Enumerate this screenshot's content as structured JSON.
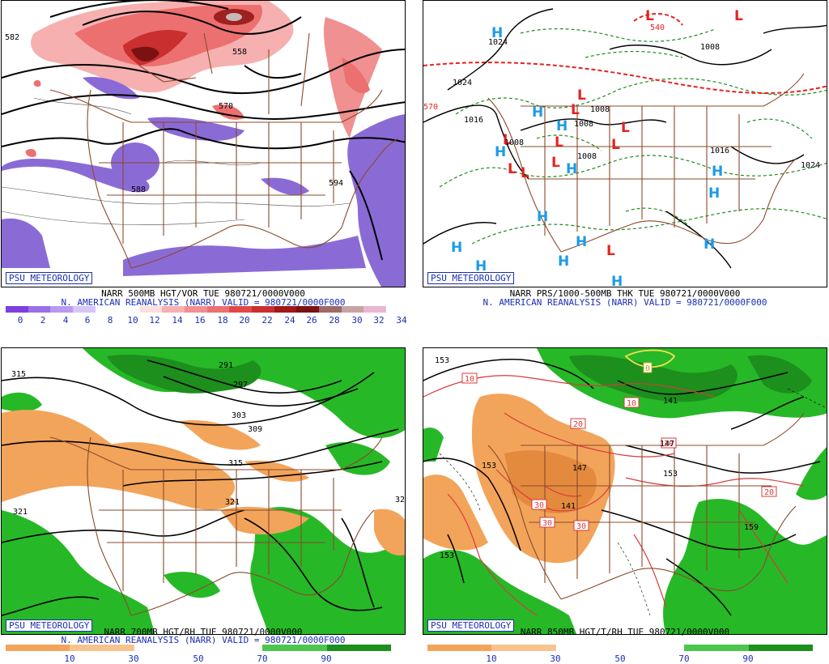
{
  "colors": {
    "blue_text": "#1a2fb5",
    "border_brown": "#8b4a2b",
    "vort_purple": "#8a6bd6",
    "vort_red": "#d83b3b",
    "moist_green": "#27b827",
    "dry_orange": "#f2a45a",
    "high_cyan": "#1c9be6",
    "low_red": "#e52222"
  },
  "panels": [
    {
      "id": "p1",
      "badge": "PSU METEOROLOGY",
      "caption_line1": "NARR 500MB HGT/VOR TUE 980721/0000V000",
      "caption_line2": "N. AMERICAN REANALYSIS (NARR) VALID = 980721/0000F000",
      "colorbar_ticks": [
        "0",
        "2",
        "4",
        "6",
        "8",
        "10",
        "12",
        "14",
        "16",
        "18",
        "20",
        "22",
        "24",
        "26",
        "28",
        "30",
        "32",
        "34"
      ],
      "contour_labels": [
        "582",
        "558",
        "570",
        "588",
        "594",
        "594",
        "588"
      ]
    },
    {
      "id": "p2",
      "badge": "PSU METEOROLOGY",
      "caption_line1": "NARR PRS/1000-500MB THK TUE 980721/0000V000",
      "caption_line2": "N. AMERICAN REANALYSIS (NARR) VALID = 980721/0000F000",
      "contour_labels": [
        "1024",
        "1024",
        "1016",
        "1008",
        "1008",
        "1008",
        "1016",
        "1024",
        "1008",
        "1008",
        "540",
        "570"
      ],
      "high_symbol": "H",
      "low_symbol": "L"
    },
    {
      "id": "p3",
      "badge": "PSU METEOROLOGY",
      "caption_line1": "NARR 700MB HGT/RH TUE 980721/0000V000",
      "caption_line2": "N. AMERICAN REANALYSIS (NARR) VALID = 980721/0000F000",
      "colorbar_ticks": [
        "10",
        "30",
        "50",
        "70",
        "90"
      ],
      "contour_labels": [
        "315",
        "291",
        "297",
        "303",
        "309",
        "315",
        "321",
        "321",
        "32"
      ]
    },
    {
      "id": "p4",
      "badge": "PSU METEOROLOGY",
      "caption_line1": "NARR 850MB HGT/T/RH TUE 980721/0000V000",
      "caption_line2": "",
      "colorbar_ticks": [
        "10",
        "30",
        "50",
        "70",
        "90"
      ],
      "contour_labels": [
        "153",
        "153",
        "147",
        "141",
        "153",
        "159",
        "153",
        "141",
        "147"
      ],
      "temp_labels": [
        "10",
        "10",
        "20",
        "20",
        "30",
        "30",
        "30",
        "20",
        "0"
      ]
    }
  ]
}
